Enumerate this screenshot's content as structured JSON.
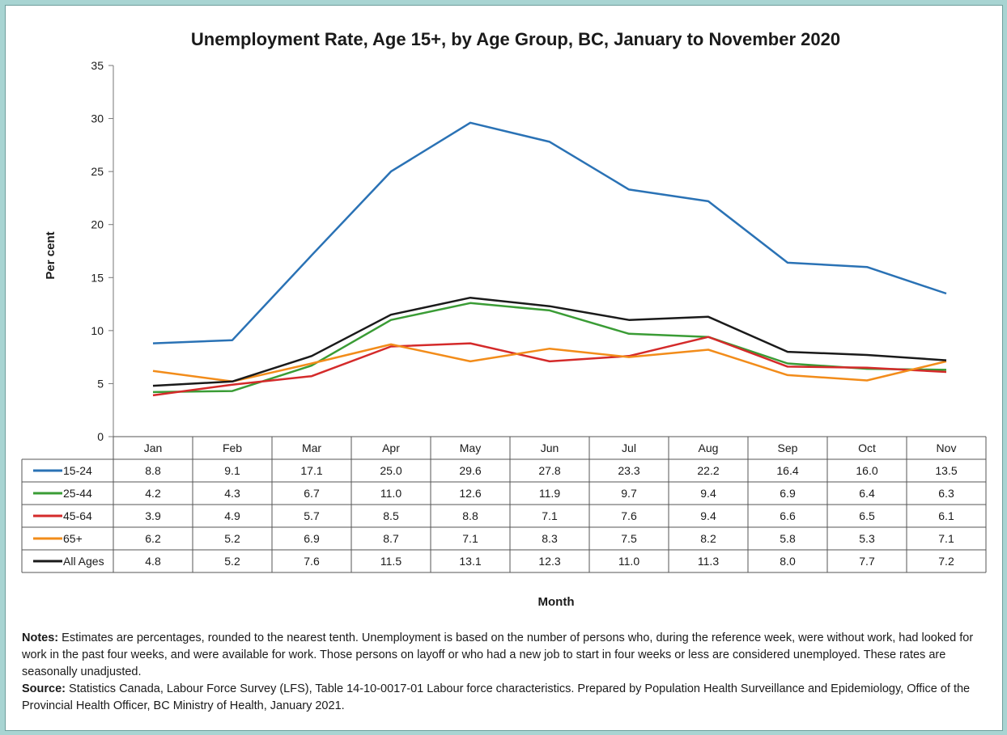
{
  "chart_data": {
    "type": "line",
    "title": "Unemployment Rate, Age 15+, by Age Group, BC, January to November 2020",
    "xlabel": "Month",
    "ylabel": "Per cent",
    "ylim": [
      0,
      35
    ],
    "yticks": [
      "0",
      "5",
      "10",
      "15",
      "20",
      "25",
      "30",
      "35"
    ],
    "categories": [
      "Jan",
      "Feb",
      "Mar",
      "Apr",
      "May",
      "Jun",
      "Jul",
      "Aug",
      "Sep",
      "Oct",
      "Nov"
    ],
    "legend_placement": "data-table-left",
    "series": [
      {
        "name": "15-24",
        "color": "#2a72b5",
        "values": [
          8.8,
          9.1,
          17.1,
          25.0,
          29.6,
          27.8,
          23.3,
          22.2,
          16.4,
          16.0,
          13.5
        ],
        "display": [
          "8.8",
          "9.1",
          "17.1",
          "25.0",
          "29.6",
          "27.8",
          "23.3",
          "22.2",
          "16.4",
          "16.0",
          "13.5"
        ]
      },
      {
        "name": "25-44",
        "color": "#3a9c35",
        "values": [
          4.2,
          4.3,
          6.7,
          11.0,
          12.6,
          11.9,
          9.7,
          9.4,
          6.9,
          6.4,
          6.3
        ],
        "display": [
          "4.2",
          "4.3",
          "6.7",
          "11.0",
          "12.6",
          "11.9",
          "9.7",
          "9.4",
          "6.9",
          "6.4",
          "6.3"
        ]
      },
      {
        "name": "45-64",
        "color": "#d42a2a",
        "values": [
          3.9,
          4.9,
          5.7,
          8.5,
          8.8,
          7.1,
          7.6,
          9.4,
          6.6,
          6.5,
          6.1
        ],
        "display": [
          "3.9",
          "4.9",
          "5.7",
          "8.5",
          "8.8",
          "7.1",
          "7.6",
          "9.4",
          "6.6",
          "6.5",
          "6.1"
        ]
      },
      {
        "name": "65+",
        "color": "#f28c1a",
        "values": [
          6.2,
          5.2,
          6.9,
          8.7,
          7.1,
          8.3,
          7.5,
          8.2,
          5.8,
          5.3,
          7.1
        ],
        "display": [
          "6.2",
          "5.2",
          "6.9",
          "8.7",
          "7.1",
          "8.3",
          "7.5",
          "8.2",
          "5.8",
          "5.3",
          "7.1"
        ]
      },
      {
        "name": "All Ages",
        "color": "#1a1a1a",
        "values": [
          4.8,
          5.2,
          7.6,
          11.5,
          13.1,
          12.3,
          11.0,
          11.3,
          8.0,
          7.7,
          7.2
        ],
        "display": [
          "4.8",
          "5.2",
          "7.6",
          "11.5",
          "13.1",
          "12.3",
          "11.0",
          "11.3",
          "8.0",
          "7.7",
          "7.2"
        ]
      }
    ]
  },
  "notes": {
    "notes_label": "Notes:",
    "notes_text": " Estimates are percentages, rounded to the nearest tenth. Unemployment is based on the number of persons who, during the reference week, were without work, had looked for work in the past four weeks, and were available for work. Those persons on layoff or who had a new job to start in four weeks or less are considered unemployed. These rates are seasonally unadjusted.",
    "source_label": "Source:",
    "source_text": " Statistics Canada, Labour Force Survey (LFS),  Table 14-10-0017-01 Labour force characteristics. Prepared by Population Health Surveillance and Epidemiology, Office of the Provincial Health Officer, BC Ministry of Health, January 2021."
  }
}
